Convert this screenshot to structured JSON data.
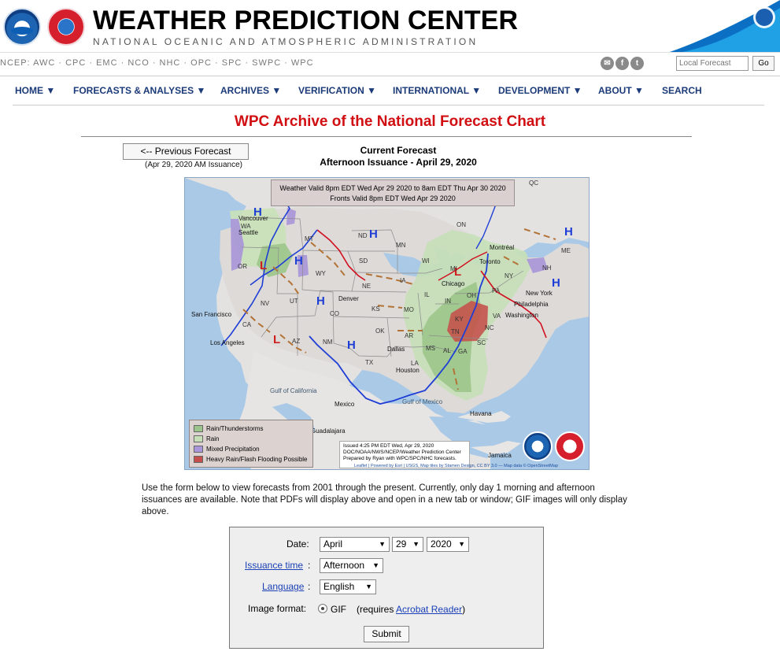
{
  "header": {
    "title": "WEATHER PREDICTION CENTER",
    "subtitle": "NATIONAL OCEANIC AND ATMOSPHERIC ADMINISTRATION"
  },
  "ncep": {
    "links": "NCEP: AWC · CPC · EMC · NCO · NHC · OPC · SPC · SWPC · WPC",
    "local_forecast_placeholder": "Local Forecast",
    "go": "Go"
  },
  "nav": {
    "home": "HOME ▼",
    "forecasts": "FORECASTS & ANALYSES ▼",
    "archives": "ARCHIVES ▼",
    "verification": "VERIFICATION ▼",
    "international": "INTERNATIONAL ▼",
    "development": "DEVELOPMENT ▼",
    "about": "ABOUT ▼",
    "search": "SEARCH"
  },
  "page": {
    "title": "WPC Archive of the National Forecast Chart",
    "previous_button": "<-- Previous Forecast",
    "previous_note": "(Apr 29, 2020 AM Issuance)",
    "current_title": "Current Forecast",
    "current_subtitle": "Afternoon Issuance - April 29, 2020"
  },
  "map": {
    "validity_line1": "Weather Valid 8pm EDT Wed Apr 29 2020 to 8am EDT Thu Apr 30 2020",
    "validity_line2": "Fronts Valid 8pm EDT Wed Apr 29 2020",
    "legend": [
      {
        "label": "Rain/Thunderstorms",
        "color": "#9cc58b"
      },
      {
        "label": "Rain",
        "color": "#c7dfb8"
      },
      {
        "label": "Mixed Precipitation",
        "color": "#a995d9"
      },
      {
        "label": "Heavy Rain/Flash Flooding Possible",
        "color": "#c5504b"
      }
    ],
    "issued_line1": "Issued 4:25 PM EDT Wed, Apr 29, 2020",
    "issued_line2": "DOC/NOAA/NWS/NCEP/Weather Prediction Center",
    "issued_line3": "Prepared by Ryan with WPC/SPC/NHC forecasts.",
    "credits": "Leaflet | Powered by Esri | USGS, Map tiles by Stamen Design, CC BY 3.0 — Map data © OpenStreetMap",
    "city_labels": {
      "vancouver": "Vancouver",
      "seattle": "Seattle",
      "san_francisco": "San Francisco",
      "los_angeles": "Los Angeles",
      "denver": "Denver",
      "dallas": "Dallas",
      "houston": "Houston",
      "chicago": "Chicago",
      "toronto": "Toronto",
      "montreal": "Montréal",
      "new_york": "New York",
      "philadelphia": "Philadelphia",
      "washington": "Washington",
      "mexico": "Mexico",
      "havana": "Havana",
      "jamaica": "Jamaica",
      "guadalajara": "Guadalajara",
      "gulf_california": "Gulf of California",
      "gulf_mexico": "Gulf of Mexico"
    },
    "state_labels": [
      "WA",
      "OR",
      "CA",
      "NV",
      "UT",
      "AZ",
      "MT",
      "WY",
      "CO",
      "NM",
      "ND",
      "SD",
      "NE",
      "KS",
      "OK",
      "TX",
      "MN",
      "IA",
      "MO",
      "AR",
      "LA",
      "MS",
      "AL",
      "GA",
      "SC",
      "NC",
      "VA",
      "TN",
      "KY",
      "IL",
      "IN",
      "OH",
      "PA",
      "NY",
      "ME",
      "NH",
      "QC",
      "ON",
      "MI",
      "WI"
    ]
  },
  "intro_text": "Use the form below to view forecasts from 2001 through the present.  Currently, only day 1 morning and afternoon issuances are available.  Note that PDFs will display above and open in a new tab or window; GIF images will only display above.",
  "form": {
    "date_label": "Date:",
    "month": "April",
    "day": "29",
    "year": "2020",
    "issuance_label": "Issuance time",
    "issuance": "Afternoon",
    "language_label": "Language",
    "language": "English",
    "format_label": "Image format:",
    "format_value": "GIF",
    "requires_prefix": "(requires ",
    "requires_link": "Acrobat Reader",
    "requires_suffix": ")",
    "submit": "Submit"
  }
}
